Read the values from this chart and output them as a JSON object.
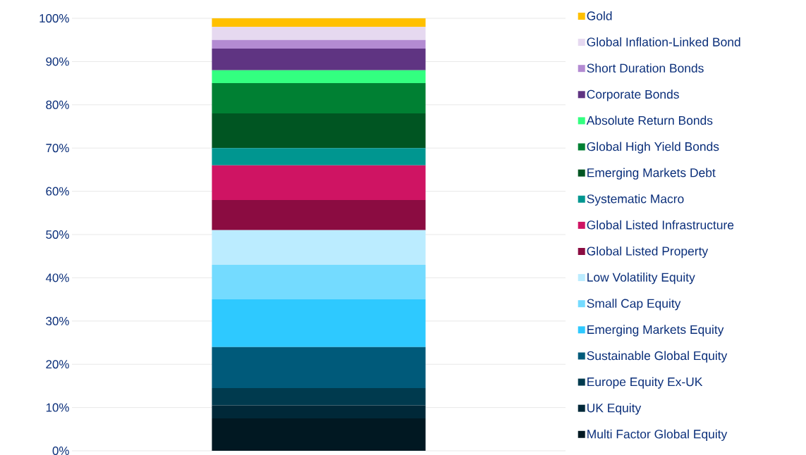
{
  "chart_data": {
    "type": "bar",
    "stacked": true,
    "categories": [
      null
    ],
    "series": [
      {
        "name": "Multi Factor Global Equity",
        "color": "#011822",
        "values": [
          7.5
        ]
      },
      {
        "name": "UK Equity",
        "color": "#002838",
        "values": [
          3
        ]
      },
      {
        "name": "Europe Equity Ex-UK",
        "color": "#003a4e",
        "values": [
          4
        ]
      },
      {
        "name": "Sustainable Global Equity",
        "color": "#005a7a",
        "values": [
          9.5
        ]
      },
      {
        "name": "Emerging Markets Equity",
        "color": "#2ec9ff",
        "values": [
          11
        ]
      },
      {
        "name": "Small Cap Equity",
        "color": "#74dbff",
        "values": [
          8
        ]
      },
      {
        "name": "Low Volatility Equity",
        "color": "#bbecff",
        "values": [
          8
        ]
      },
      {
        "name": "Global Listed Property",
        "color": "#8b0c41",
        "values": [
          7
        ]
      },
      {
        "name": "Global Listed Infrastructure",
        "color": "#cf1463",
        "values": [
          8
        ]
      },
      {
        "name": "Systematic Macro",
        "color": "#009690",
        "values": [
          4
        ]
      },
      {
        "name": "Emerging Markets Debt",
        "color": "#005522",
        "values": [
          8
        ]
      },
      {
        "name": "Global High Yield Bonds",
        "color": "#008033",
        "values": [
          7
        ]
      },
      {
        "name": "Absolute Return Bonds",
        "color": "#33ff80",
        "values": [
          3
        ]
      },
      {
        "name": "Corporate Bonds",
        "color": "#5f3482",
        "values": [
          5
        ]
      },
      {
        "name": "Short Duration Bonds",
        "color": "#b38bd2",
        "values": [
          2
        ]
      },
      {
        "name": "Global Inflation-Linked Bond",
        "color": "#e6d9f0",
        "values": [
          3
        ]
      },
      {
        "name": "Gold",
        "color": "#ffc000",
        "values": [
          2
        ]
      }
    ],
    "ylim": [
      0,
      100
    ],
    "yticks": [
      {
        "value": 0,
        "label": "0%"
      },
      {
        "value": 10,
        "label": "10%"
      },
      {
        "value": 20,
        "label": "20%"
      },
      {
        "value": 30,
        "label": "30%"
      },
      {
        "value": 40,
        "label": "40%"
      },
      {
        "value": 50,
        "label": "50%"
      },
      {
        "value": 60,
        "label": "60%"
      },
      {
        "value": 70,
        "label": "70%"
      },
      {
        "value": 80,
        "label": "80%"
      },
      {
        "value": 90,
        "label": "90%"
      },
      {
        "value": 100,
        "label": "100%"
      }
    ],
    "grid": "y",
    "legend": "right",
    "tick_labels": "y"
  }
}
